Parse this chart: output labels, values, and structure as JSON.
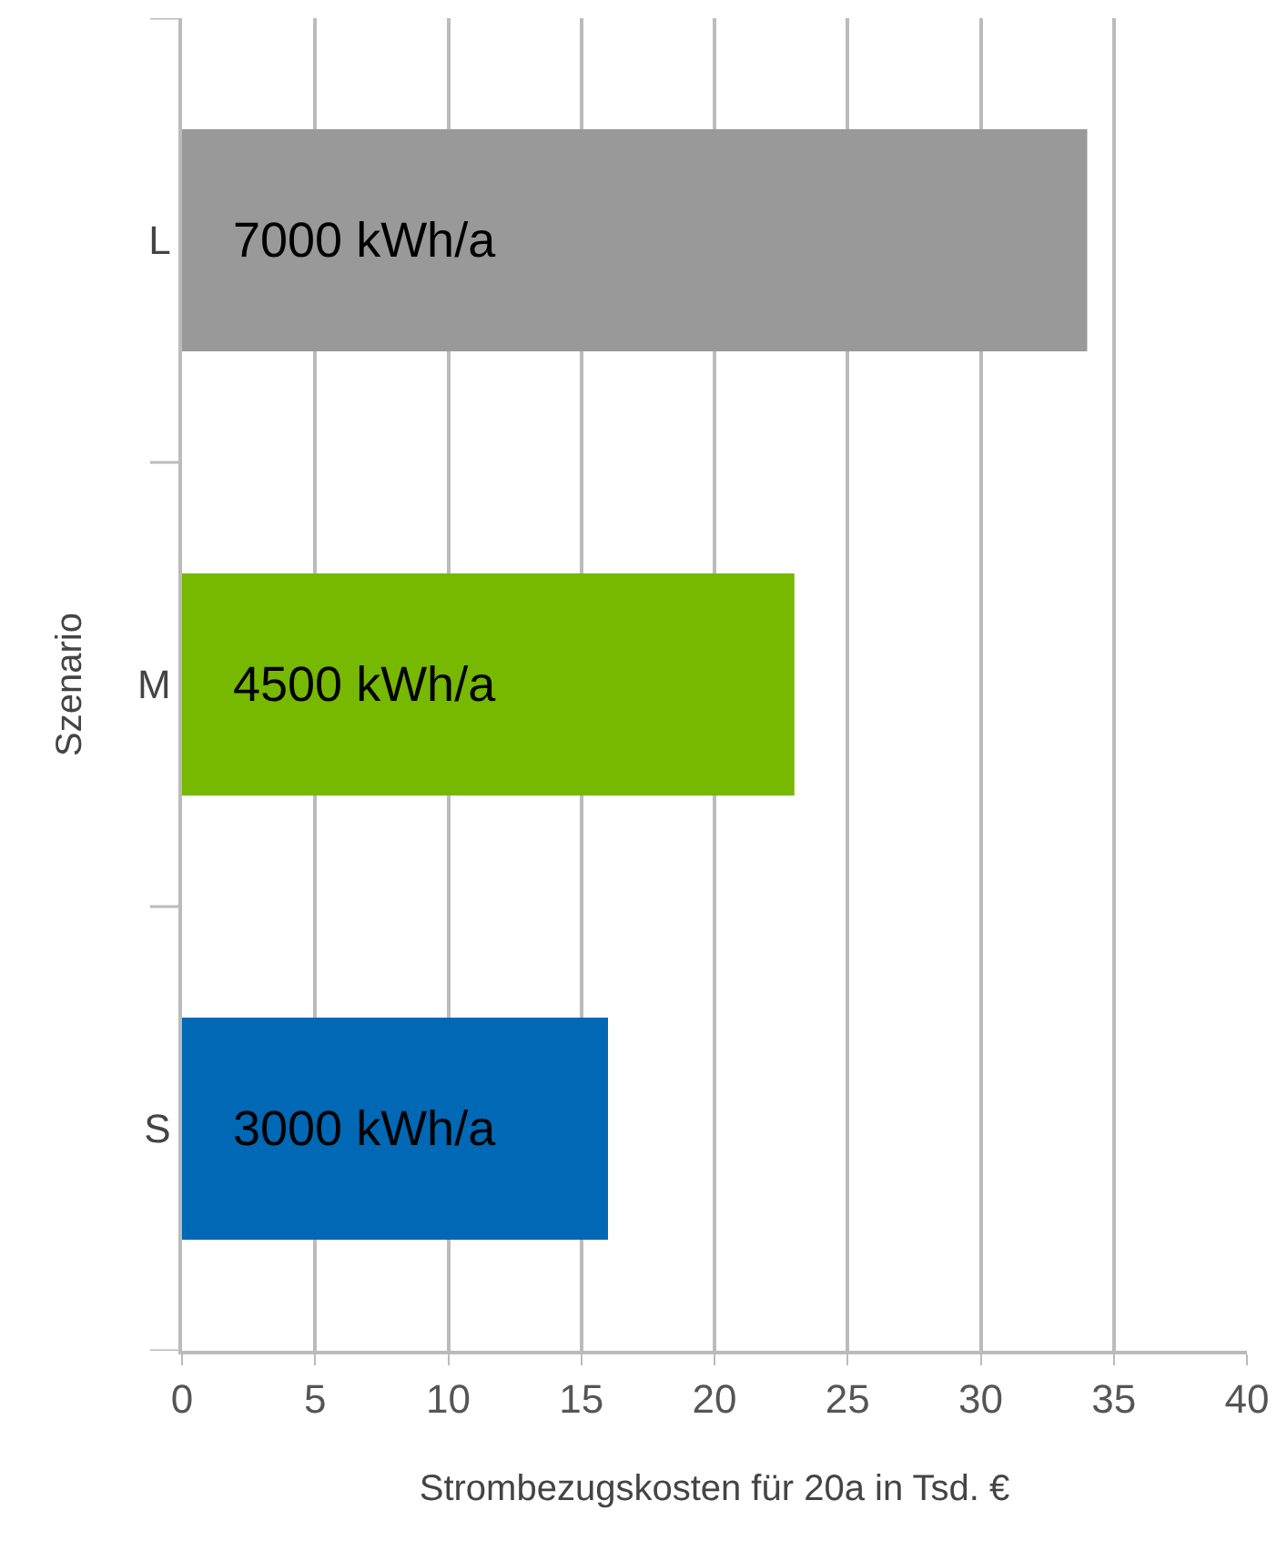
{
  "chart_data": {
    "type": "bar",
    "orientation": "horizontal",
    "categories": [
      "L",
      "M",
      "S"
    ],
    "values": [
      34,
      23,
      16
    ],
    "colors": [
      "#999999",
      "#77b800",
      "#0068b4"
    ],
    "xlabel": "Strombezugskosten für 20a in Tsd. €",
    "ylabel": "Szenario",
    "xlim": [
      0,
      40
    ],
    "xticks": [
      0,
      5,
      10,
      15,
      20,
      25,
      30,
      35,
      40
    ],
    "grid": "x",
    "annotations": [
      "7000 kWh/a",
      "4500 kWh/a",
      "3000 kWh/a"
    ]
  }
}
